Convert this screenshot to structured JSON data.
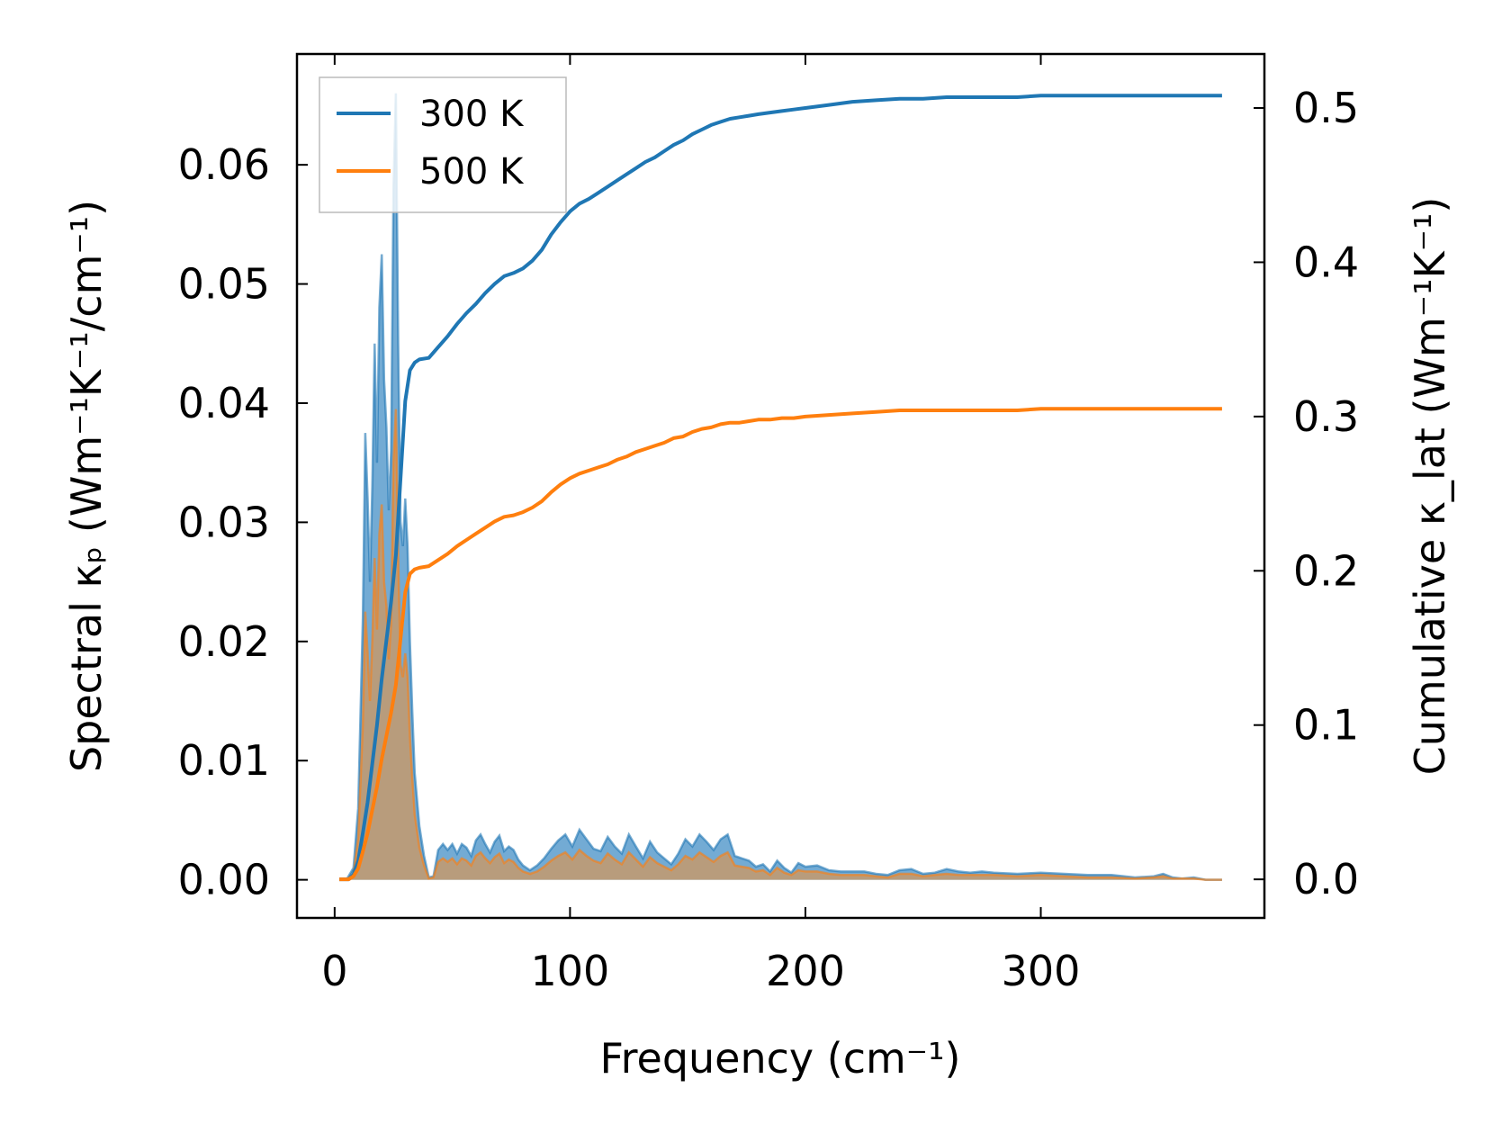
{
  "chart_data": {
    "type": "area",
    "xlabel": "Frequency (cm⁻¹)",
    "ylabel_left": "Spectral κₚ (Wm⁻¹K⁻¹/cm⁻¹)",
    "ylabel_right": "Cumulative κ_lat (Wm⁻¹K⁻¹)",
    "xlim": [
      -16,
      395
    ],
    "ylim_left": [
      -0.0032,
      0.0693
    ],
    "ylim_right": [
      -0.025,
      0.535
    ],
    "xticks": [
      "0",
      "100",
      "200",
      "300"
    ],
    "xtick_values": [
      0,
      100,
      200,
      300
    ],
    "yticks_left": [
      "0.00",
      "0.01",
      "0.02",
      "0.03",
      "0.04",
      "0.05",
      "0.06"
    ],
    "ytick_left_values": [
      0.0,
      0.01,
      0.02,
      0.03,
      0.04,
      0.05,
      0.06
    ],
    "yticks_right": [
      "0.0",
      "0.1",
      "0.2",
      "0.3",
      "0.4",
      "0.5"
    ],
    "ytick_right_values": [
      0.0,
      0.1,
      0.2,
      0.3,
      0.4,
      0.5
    ],
    "legend": {
      "location": "upper-left",
      "entries": [
        "300 K",
        "500 K"
      ]
    },
    "colors": {
      "300K": "#1f77b4",
      "500K": "#ff7f0e",
      "300K_fill": "#5b9ccc",
      "500K_fill": "#c4996c",
      "frame": "#000000",
      "legend_border": "#bbbbbb"
    },
    "series": [
      {
        "name": "300 K",
        "axis": "left",
        "kind": "spectral",
        "color": "#1f77b4",
        "x": [
          2,
          5,
          8,
          10,
          12,
          13,
          14,
          15,
          16,
          17,
          18,
          19,
          20,
          21,
          22,
          23,
          24,
          25,
          26,
          27,
          28,
          29,
          30,
          31,
          32,
          33,
          34,
          36,
          38,
          40,
          42,
          44,
          46,
          48,
          50,
          52,
          54,
          56,
          58,
          60,
          62,
          64,
          66,
          68,
          70,
          72,
          74,
          76,
          78,
          80,
          83,
          86,
          89,
          92,
          95,
          98,
          101,
          104,
          107,
          110,
          113,
          116,
          119,
          122,
          125,
          128,
          131,
          134,
          137,
          140,
          143,
          146,
          149,
          152,
          155,
          158,
          161,
          164,
          167,
          170,
          173,
          176,
          179,
          182,
          185,
          188,
          191,
          194,
          197,
          200,
          205,
          210,
          215,
          220,
          225,
          230,
          235,
          240,
          245,
          250,
          255,
          260,
          265,
          270,
          275,
          280,
          290,
          300,
          310,
          320,
          330,
          340,
          348,
          352,
          356,
          360,
          365,
          370,
          377
        ],
        "y": [
          0.0,
          0.0,
          0.001,
          0.006,
          0.022,
          0.0375,
          0.032,
          0.025,
          0.033,
          0.045,
          0.035,
          0.048,
          0.0525,
          0.042,
          0.038,
          0.031,
          0.036,
          0.058,
          0.066,
          0.045,
          0.03,
          0.028,
          0.032,
          0.028,
          0.02,
          0.014,
          0.009,
          0.0045,
          0.002,
          0.0002,
          0.0003,
          0.0025,
          0.003,
          0.0025,
          0.003,
          0.0022,
          0.003,
          0.0027,
          0.002,
          0.0033,
          0.0038,
          0.003,
          0.0023,
          0.0032,
          0.0037,
          0.0024,
          0.0028,
          0.0025,
          0.0017,
          0.0012,
          0.0008,
          0.0012,
          0.0018,
          0.0026,
          0.0033,
          0.0038,
          0.0028,
          0.0042,
          0.0034,
          0.0026,
          0.0024,
          0.0036,
          0.0028,
          0.0022,
          0.0038,
          0.0028,
          0.0018,
          0.0032,
          0.0023,
          0.0018,
          0.0013,
          0.0022,
          0.0034,
          0.0028,
          0.0038,
          0.0032,
          0.0025,
          0.0034,
          0.0038,
          0.002,
          0.0018,
          0.0016,
          0.0011,
          0.0013,
          0.0007,
          0.0016,
          0.001,
          0.0006,
          0.0014,
          0.0011,
          0.0012,
          0.0008,
          0.0007,
          0.0007,
          0.0007,
          0.0005,
          0.0004,
          0.0008,
          0.0009,
          0.0005,
          0.0006,
          0.0009,
          0.0007,
          0.0006,
          0.0007,
          0.0006,
          0.0005,
          0.0006,
          0.0005,
          0.0004,
          0.0004,
          0.0002,
          0.0003,
          0.0005,
          0.0002,
          0.0001,
          0.0002,
          0.0,
          0.0
        ]
      },
      {
        "name": "500 K",
        "axis": "left",
        "kind": "spectral",
        "color": "#ff7f0e",
        "x": [
          2,
          5,
          8,
          10,
          12,
          13,
          14,
          15,
          16,
          17,
          18,
          19,
          20,
          21,
          22,
          23,
          24,
          25,
          26,
          27,
          28,
          29,
          30,
          31,
          32,
          33,
          34,
          36,
          38,
          40,
          42,
          44,
          46,
          48,
          50,
          52,
          54,
          56,
          58,
          60,
          62,
          64,
          66,
          68,
          70,
          72,
          74,
          76,
          78,
          80,
          83,
          86,
          89,
          92,
          95,
          98,
          101,
          104,
          107,
          110,
          113,
          116,
          119,
          122,
          125,
          128,
          131,
          134,
          137,
          140,
          143,
          146,
          149,
          152,
          155,
          158,
          161,
          164,
          167,
          170,
          173,
          176,
          179,
          182,
          185,
          188,
          191,
          194,
          197,
          200,
          205,
          210,
          215,
          220,
          225,
          230,
          235,
          240,
          245,
          250,
          255,
          260,
          265,
          270,
          275,
          280,
          290,
          300,
          310,
          320,
          330,
          340,
          348,
          352,
          356,
          360,
          365,
          370,
          377
        ],
        "y": [
          0.0,
          0.0,
          0.0005,
          0.0035,
          0.013,
          0.0225,
          0.019,
          0.015,
          0.02,
          0.027,
          0.021,
          0.029,
          0.0315,
          0.025,
          0.023,
          0.0185,
          0.0215,
          0.035,
          0.0395,
          0.027,
          0.018,
          0.017,
          0.019,
          0.017,
          0.012,
          0.0085,
          0.0055,
          0.0027,
          0.0012,
          0.0001,
          0.0002,
          0.0015,
          0.0018,
          0.0015,
          0.0018,
          0.0013,
          0.0018,
          0.0016,
          0.0012,
          0.002,
          0.0023,
          0.0018,
          0.0014,
          0.0019,
          0.0022,
          0.0014,
          0.0017,
          0.0015,
          0.001,
          0.0007,
          0.0005,
          0.0007,
          0.0011,
          0.0016,
          0.002,
          0.0023,
          0.0017,
          0.0025,
          0.002,
          0.0016,
          0.0014,
          0.0022,
          0.0017,
          0.0013,
          0.0023,
          0.0017,
          0.0011,
          0.0019,
          0.0014,
          0.0011,
          0.0008,
          0.0013,
          0.002,
          0.0017,
          0.0023,
          0.0019,
          0.0015,
          0.002,
          0.0023,
          0.0012,
          0.0011,
          0.001,
          0.0007,
          0.0008,
          0.0004,
          0.001,
          0.0006,
          0.0004,
          0.0008,
          0.0007,
          0.0007,
          0.0005,
          0.0004,
          0.0004,
          0.0004,
          0.0003,
          0.0002,
          0.0005,
          0.0005,
          0.0003,
          0.0004,
          0.0005,
          0.0004,
          0.0004,
          0.0004,
          0.0004,
          0.0003,
          0.0004,
          0.0003,
          0.0002,
          0.0002,
          0.0001,
          0.0002,
          0.0003,
          0.0001,
          0.0001,
          0.0001,
          0.0,
          0.0
        ]
      },
      {
        "name": "300 K",
        "axis": "right",
        "kind": "cumulative",
        "color": "#1f77b4",
        "x": [
          2,
          6,
          8,
          10,
          12,
          14,
          16,
          18,
          20,
          22,
          24,
          26,
          28,
          30,
          32,
          34,
          36,
          40,
          44,
          48,
          52,
          56,
          60,
          64,
          68,
          72,
          76,
          80,
          84,
          88,
          92,
          96,
          100,
          104,
          108,
          112,
          116,
          120,
          124,
          128,
          132,
          136,
          140,
          144,
          148,
          152,
          156,
          160,
          164,
          168,
          172,
          176,
          180,
          185,
          190,
          195,
          200,
          210,
          220,
          230,
          240,
          250,
          260,
          270,
          280,
          290,
          300,
          310,
          320,
          330,
          340,
          350,
          360,
          370,
          377
        ],
        "y": [
          0.0,
          0.0,
          0.003,
          0.012,
          0.03,
          0.05,
          0.075,
          0.1,
          0.13,
          0.155,
          0.18,
          0.21,
          0.26,
          0.31,
          0.33,
          0.335,
          0.337,
          0.338,
          0.345,
          0.352,
          0.36,
          0.367,
          0.373,
          0.38,
          0.386,
          0.391,
          0.393,
          0.396,
          0.401,
          0.408,
          0.418,
          0.426,
          0.433,
          0.438,
          0.441,
          0.445,
          0.449,
          0.453,
          0.457,
          0.461,
          0.465,
          0.468,
          0.472,
          0.476,
          0.479,
          0.483,
          0.486,
          0.489,
          0.491,
          0.493,
          0.494,
          0.495,
          0.496,
          0.497,
          0.498,
          0.499,
          0.5,
          0.502,
          0.504,
          0.505,
          0.506,
          0.506,
          0.507,
          0.507,
          0.507,
          0.507,
          0.508,
          0.508,
          0.508,
          0.508,
          0.508,
          0.508,
          0.508,
          0.508,
          0.508
        ]
      },
      {
        "name": "500 K",
        "axis": "right",
        "kind": "cumulative",
        "color": "#ff7f0e",
        "x": [
          2,
          6,
          8,
          10,
          12,
          14,
          16,
          18,
          20,
          22,
          24,
          26,
          28,
          30,
          32,
          34,
          36,
          40,
          44,
          48,
          52,
          56,
          60,
          64,
          68,
          72,
          76,
          80,
          84,
          88,
          92,
          96,
          100,
          104,
          108,
          112,
          116,
          120,
          124,
          128,
          132,
          136,
          140,
          144,
          148,
          152,
          156,
          160,
          164,
          168,
          172,
          176,
          180,
          185,
          190,
          195,
          200,
          210,
          220,
          230,
          240,
          250,
          260,
          270,
          280,
          290,
          300,
          310,
          320,
          330,
          340,
          350,
          360,
          370,
          377
        ],
        "y": [
          0.0,
          0.0,
          0.002,
          0.007,
          0.018,
          0.03,
          0.045,
          0.06,
          0.078,
          0.093,
          0.108,
          0.126,
          0.156,
          0.186,
          0.198,
          0.201,
          0.202,
          0.203,
          0.207,
          0.211,
          0.216,
          0.22,
          0.224,
          0.228,
          0.232,
          0.235,
          0.236,
          0.238,
          0.241,
          0.245,
          0.251,
          0.256,
          0.26,
          0.263,
          0.265,
          0.267,
          0.269,
          0.272,
          0.274,
          0.277,
          0.279,
          0.281,
          0.283,
          0.286,
          0.287,
          0.29,
          0.292,
          0.293,
          0.295,
          0.296,
          0.296,
          0.297,
          0.298,
          0.298,
          0.299,
          0.299,
          0.3,
          0.301,
          0.302,
          0.303,
          0.304,
          0.304,
          0.304,
          0.304,
          0.304,
          0.304,
          0.305,
          0.305,
          0.305,
          0.305,
          0.305,
          0.305,
          0.305,
          0.305,
          0.305
        ]
      }
    ]
  }
}
